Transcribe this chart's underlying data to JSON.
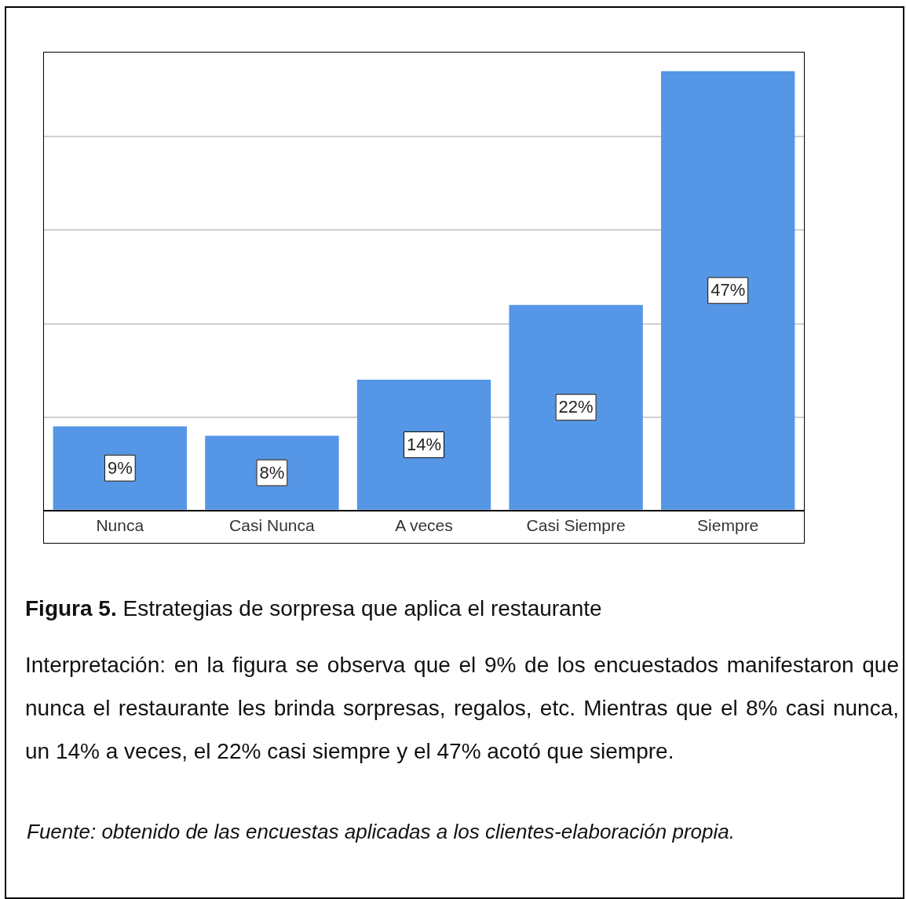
{
  "chart_data": {
    "type": "bar",
    "title": "Figura 5.",
    "subtitle": "Estrategias de sorpresa que aplica el restaurante",
    "categories": [
      "Nunca",
      "Casi Nunca",
      "A veces",
      "Casi Siempre",
      "Siempre"
    ],
    "values": [
      9,
      8,
      14,
      22,
      47
    ],
    "value_labels": [
      "9%",
      "8%",
      "14%",
      "22%",
      "47%"
    ],
    "color": "#5596e6",
    "ylim": [
      0,
      49
    ],
    "yticks": [
      {
        "value": 0,
        "label": null
      },
      {
        "value": 10,
        "label": null
      },
      {
        "value": 20,
        "label": null
      },
      {
        "value": 30,
        "label": null
      },
      {
        "value": 40,
        "label": null
      }
    ],
    "tick_labels": "x",
    "grid": "y",
    "legend": false,
    "annotations": [
      "Interpretación: en la figura se observa que el 9% de los encuestados manifestaron que nunca el restaurante les brinda sorpresas, regalos, etc. Mientras que el 8% casi nunca, un 14% a veces, el 22% casi siempre y el 47% acotó que siempre.",
      "Fuente: obtenido de las encuestas aplicadas a los clientes-elaboración propia."
    ]
  }
}
